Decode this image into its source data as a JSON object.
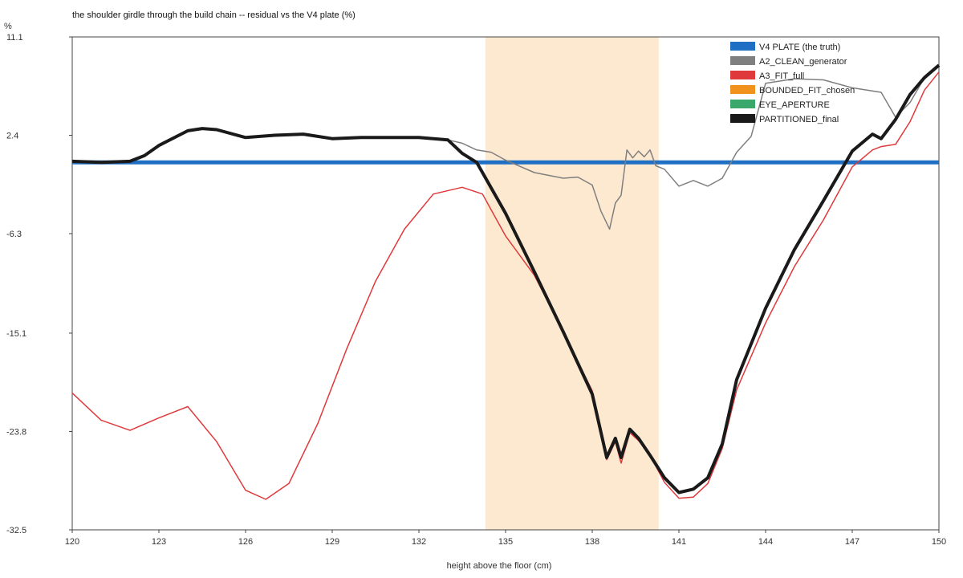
{
  "chart_data": {
    "type": "line",
    "title": "the shoulder girdle through the build chain -- residual vs the V4 plate (%)",
    "xlabel": "height above the floor (cm)",
    "ylabel": "%",
    "xlim": [
      120,
      150
    ],
    "ylim": [
      -32.5,
      11.1
    ],
    "xticks": [
      "120",
      "123",
      "126",
      "129",
      "132",
      "135",
      "138",
      "141",
      "144",
      "147",
      "150"
    ],
    "yticks": [
      "11.1",
      "2.4",
      "-6.3",
      "-15.1",
      "-23.8",
      "-32.5"
    ],
    "grid": false,
    "legend_position": "top-right",
    "shaded_region": {
      "x0": 134.3,
      "x1": 140.3,
      "color": "#fde9cf"
    },
    "series": [
      {
        "name": "V4 PLATE (the truth)",
        "color": "#1f6fc5",
        "width": 5,
        "x": [
          120,
          150
        ],
        "y": [
          0.0,
          0.0
        ]
      },
      {
        "name": "A2_CLEAN_generator",
        "color": "#7f7f7f",
        "width": 1.5,
        "x": [
          120,
          121,
          122,
          122.5,
          123,
          124,
          124.5,
          125,
          126,
          127,
          128,
          129,
          130,
          131,
          132,
          133,
          133.5,
          134,
          134.5,
          135,
          136,
          137,
          137.5,
          138,
          138.3,
          138.6,
          138.8,
          139,
          139.2,
          139.4,
          139.6,
          139.8,
          140,
          140.2,
          140.5,
          141,
          141.5,
          142,
          142.5,
          143,
          143.5,
          144,
          145,
          146,
          147,
          148,
          148.5,
          149,
          149.5,
          150
        ],
        "y": [
          0.1,
          0.0,
          0.1,
          0.6,
          1.5,
          2.8,
          3.0,
          2.9,
          2.2,
          2.4,
          2.5,
          2.1,
          2.2,
          2.2,
          2.2,
          2.0,
          1.7,
          1.1,
          0.9,
          0.2,
          -0.9,
          -1.4,
          -1.3,
          -2.0,
          -4.3,
          -5.9,
          -3.6,
          -2.9,
          1.1,
          0.4,
          1.0,
          0.5,
          1.1,
          -0.3,
          -0.6,
          -2.1,
          -1.6,
          -2.1,
          -1.4,
          0.9,
          2.3,
          7.0,
          7.4,
          7.3,
          6.6,
          6.2,
          4.0,
          5.3,
          7.5,
          8.6
        ]
      },
      {
        "name": "A3_FIT_full",
        "color": "#e0393c",
        "width": 1.5,
        "x": [
          120,
          121,
          122,
          123,
          124,
          125,
          126,
          126.7,
          127.5,
          128.5,
          129.5,
          130.5,
          131.5,
          132.5,
          133.5,
          134.2,
          135,
          136,
          137,
          138,
          138.5,
          138.8,
          139,
          139.3,
          139.6,
          140,
          140.5,
          141,
          141.5,
          142,
          142.5,
          143,
          144,
          145,
          146,
          147,
          147.7,
          148,
          148.5,
          149,
          149.5,
          150
        ],
        "y": [
          -20.4,
          -22.8,
          -23.7,
          -22.6,
          -21.6,
          -24.7,
          -29.0,
          -29.8,
          -28.4,
          -23.1,
          -16.5,
          -10.5,
          -5.9,
          -2.8,
          -2.2,
          -2.8,
          -6.5,
          -10.0,
          -15.0,
          -20.2,
          -26.3,
          -24.7,
          -26.6,
          -23.9,
          -24.6,
          -25.9,
          -28.3,
          -29.7,
          -29.6,
          -28.4,
          -25.3,
          -20.1,
          -14.2,
          -9.2,
          -5.1,
          -0.4,
          1.1,
          1.4,
          1.6,
          3.6,
          6.4,
          8.0
        ]
      },
      {
        "name": "BOUNDED_FIT_chosen",
        "color": "#f0921c",
        "width": 1.5,
        "x": [],
        "y": []
      },
      {
        "name": "EYE_APERTURE",
        "color": "#3aa86b",
        "width": 1.5,
        "x": [],
        "y": []
      },
      {
        "name": "PARTITIONED_final",
        "color": "#1a1a1a",
        "width": 4,
        "x": [
          120,
          121,
          122,
          122.5,
          123,
          124,
          124.5,
          125,
          126,
          127,
          128,
          129,
          130,
          131,
          132,
          133,
          133.5,
          134,
          135,
          136,
          137,
          138,
          138.5,
          138.8,
          139,
          139.3,
          139.6,
          140,
          140.5,
          141,
          141.5,
          142,
          142.5,
          143,
          144,
          145,
          146,
          147,
          147.7,
          148,
          148.5,
          149,
          149.5,
          150
        ],
        "y": [
          0.1,
          0.0,
          0.1,
          0.6,
          1.5,
          2.8,
          3.0,
          2.9,
          2.2,
          2.4,
          2.5,
          2.1,
          2.2,
          2.2,
          2.2,
          2.0,
          0.8,
          0.0,
          -4.5,
          -9.7,
          -15.0,
          -20.5,
          -26.1,
          -24.4,
          -26.1,
          -23.6,
          -24.4,
          -25.9,
          -27.9,
          -29.2,
          -28.9,
          -27.9,
          -24.9,
          -19.2,
          -12.9,
          -7.7,
          -3.4,
          1.0,
          2.5,
          2.1,
          3.8,
          6.0,
          7.5,
          8.6
        ]
      }
    ]
  }
}
